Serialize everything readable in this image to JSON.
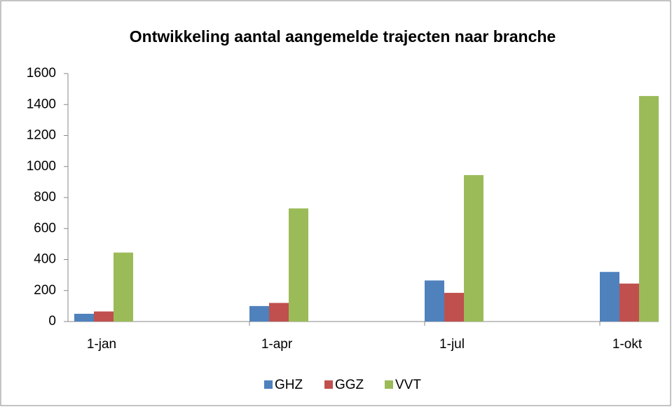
{
  "chart_data": {
    "type": "bar",
    "title": "Ontwikkeling aantal aangemelde trajecten naar branche",
    "categories": [
      "1-jan",
      "1-apr",
      "1-jul",
      "1-okt"
    ],
    "series": [
      {
        "name": "GHZ",
        "color": "#4f81bd",
        "values": [
          50,
          100,
          265,
          320
        ]
      },
      {
        "name": "GGZ",
        "color": "#c0504d",
        "values": [
          65,
          120,
          185,
          245
        ]
      },
      {
        "name": "VVT",
        "color": "#9bbb59",
        "values": [
          445,
          730,
          945,
          1455
        ]
      }
    ],
    "ylim": [
      0,
      1600
    ],
    "yticks": [
      0,
      200,
      400,
      600,
      800,
      1000,
      1200,
      1400,
      1600
    ],
    "grid": false,
    "legend": "bottom"
  }
}
